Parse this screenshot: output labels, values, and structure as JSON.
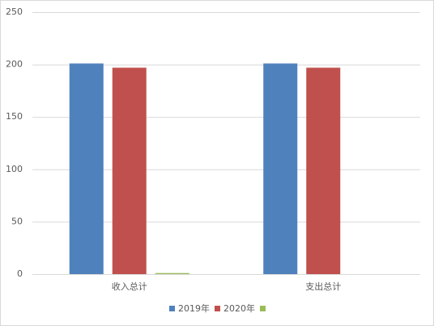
{
  "chart_data": {
    "type": "bar",
    "categories": [
      "收入总计",
      "支出总计"
    ],
    "series": [
      {
        "name": "2019年",
        "color": "#4f81bd",
        "values": [
          201,
          201
        ]
      },
      {
        "name": "2020年",
        "color": "#c0504d",
        "values": [
          197,
          197
        ]
      },
      {
        "name": null,
        "color": "#9bbb59",
        "values": [
          1,
          0
        ]
      }
    ],
    "ylim": [
      0,
      250
    ],
    "yticks": [
      0,
      50,
      100,
      150,
      200,
      250
    ],
    "grid": true,
    "legend": "bottom"
  }
}
